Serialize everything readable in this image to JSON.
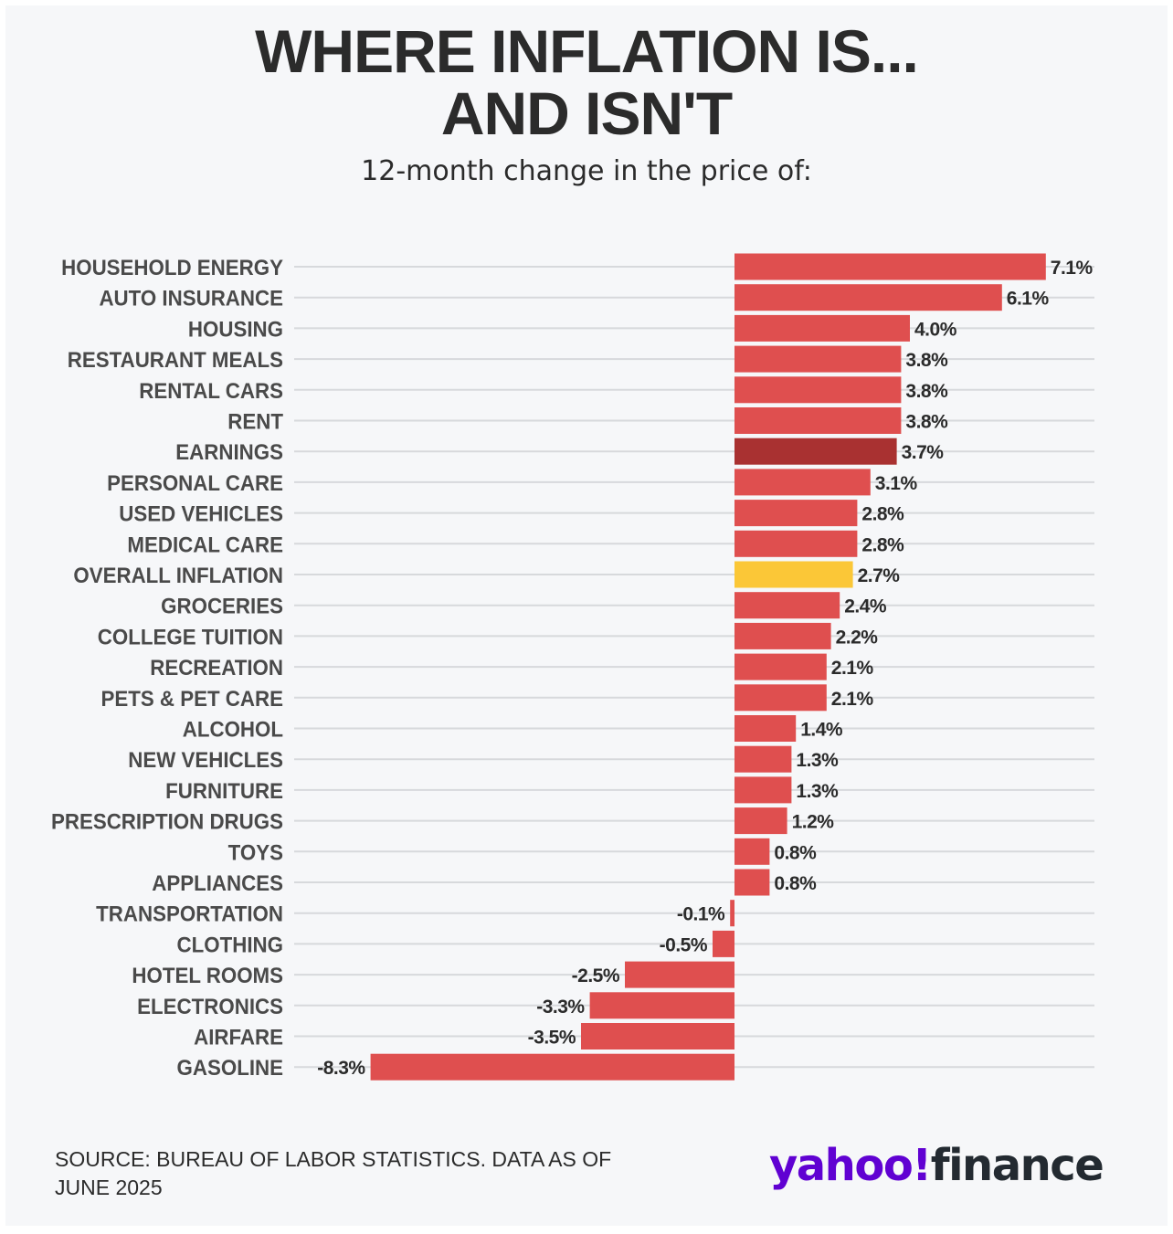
{
  "title_line1": "WHERE INFLATION IS...",
  "title_line2": "AND ISN'T",
  "subtitle": "12-month change in the price of:",
  "source": "SOURCE: BUREAU OF LABOR STATISTICS. DATA AS OF JUNE 2025",
  "logo": {
    "part1": "yahoo!",
    "part2": "finance"
  },
  "colors": {
    "bar": "#df4f4f",
    "earnings": "#a93131",
    "overall": "#fbc737",
    "gridline": "#d7d9dc",
    "label": "#4a4a4a",
    "value": "#2b2b2b"
  },
  "chart_data": {
    "type": "bar",
    "orientation": "horizontal",
    "title": "WHERE INFLATION IS... AND ISN'T",
    "subtitle": "12-month change in the price of:",
    "unit": "%",
    "xlim": [
      -8.3,
      7.1
    ],
    "categories": [
      "HOUSEHOLD ENERGY",
      "AUTO INSURANCE",
      "HOUSING",
      "RESTAURANT MEALS",
      "RENTAL CARS",
      "RENT",
      "EARNINGS",
      "PERSONAL CARE",
      "USED VEHICLES",
      "MEDICAL CARE",
      "OVERALL INFLATION",
      "GROCERIES",
      "COLLEGE TUITION",
      "RECREATION",
      "PETS & PET CARE",
      "ALCOHOL",
      "NEW VEHICLES",
      "FURNITURE",
      "PRESCRIPTION DRUGS",
      "TOYS",
      "APPLIANCES",
      "TRANSPORTATION",
      "CLOTHING",
      "HOTEL ROOMS",
      "ELECTRONICS",
      "AIRFARE",
      "GASOLINE"
    ],
    "values": [
      7.1,
      6.1,
      4.0,
      3.8,
      3.8,
      3.8,
      3.7,
      3.1,
      2.8,
      2.8,
      2.7,
      2.4,
      2.2,
      2.1,
      2.1,
      1.4,
      1.3,
      1.3,
      1.2,
      0.8,
      0.8,
      -0.1,
      -0.5,
      -2.5,
      -3.3,
      -3.5,
      -8.3
    ],
    "value_labels": [
      "7.1%",
      "6.1%",
      "4.0%",
      "3.8%",
      "3.8%",
      "3.8%",
      "3.7%",
      "3.1%",
      "2.8%",
      "2.8%",
      "2.7%",
      "2.4%",
      "2.2%",
      "2.1%",
      "2.1%",
      "1.4%",
      "1.3%",
      "1.3%",
      "1.2%",
      "0.8%",
      "0.8%",
      "-0.1%",
      "-0.5%",
      "-2.5%",
      "-3.3%",
      "-3.5%",
      "-8.3%"
    ],
    "highlight": {
      "EARNINGS": "earnings",
      "OVERALL INFLATION": "overall"
    },
    "grid": true,
    "legend": "none"
  }
}
